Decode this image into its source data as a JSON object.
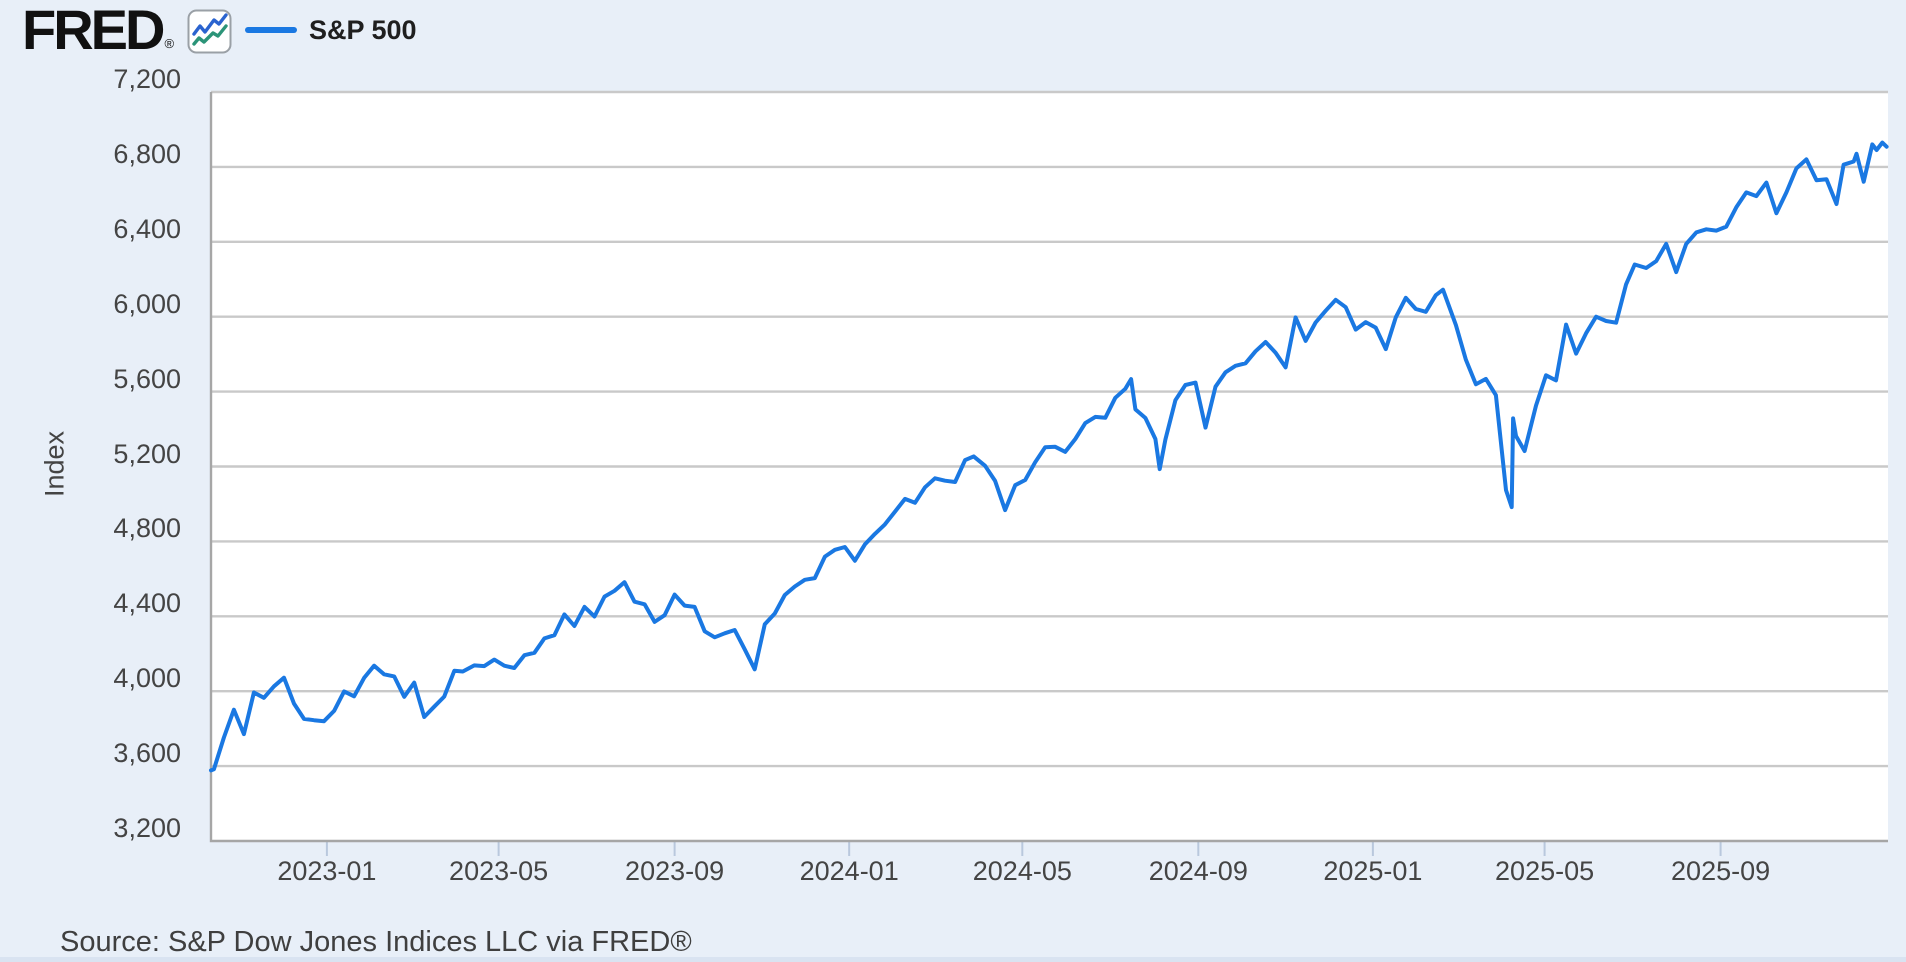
{
  "header": {
    "logo_text": "FRED",
    "logo_registered": "®",
    "legend_label": "S&P 500"
  },
  "footer": {
    "source": "Source: S&P Dow Jones Indices LLC via FRED®"
  },
  "colors": {
    "series_line": "#1a78e2",
    "background": "#e8eff8",
    "plot_background": "#ffffff",
    "gridline": "#c9c9c9",
    "axis_border": "#a6a6a6",
    "tick_mark": "#b9c8dd",
    "label_text": "#444444",
    "icon_blue": "#2a63cf",
    "icon_teal": "#2b9478"
  },
  "chart_data": {
    "type": "line",
    "title": "",
    "xlabel": "",
    "ylabel": "Index",
    "series_name": "S&P 500",
    "legend_position": "top-left",
    "grid": true,
    "ylim": [
      3200,
      7200
    ],
    "y_ticks": [
      3200,
      3600,
      4000,
      4400,
      4800,
      5200,
      5600,
      6000,
      6400,
      6800,
      7200
    ],
    "y_tick_labels": [
      "3,200",
      "3,600",
      "4,000",
      "4,400",
      "4,800",
      "5,200",
      "5,600",
      "6,000",
      "6,400",
      "6,800",
      "7,200"
    ],
    "xlim": [
      "2022-10-12",
      "2025-12-27"
    ],
    "x_ticks": [
      {
        "date": "2023-01-01",
        "label": "2023-01"
      },
      {
        "date": "2023-05-01",
        "label": "2023-05"
      },
      {
        "date": "2023-09-01",
        "label": "2023-09"
      },
      {
        "date": "2024-01-01",
        "label": "2024-01"
      },
      {
        "date": "2024-05-01",
        "label": "2024-05"
      },
      {
        "date": "2024-09-01",
        "label": "2024-09"
      },
      {
        "date": "2025-01-01",
        "label": "2025-01"
      },
      {
        "date": "2025-05-01",
        "label": "2025-05"
      },
      {
        "date": "2025-09-01",
        "label": "2025-09"
      }
    ],
    "points": [
      [
        "2022-10-12",
        3577
      ],
      [
        "2022-10-14",
        3583
      ],
      [
        "2022-10-21",
        3753
      ],
      [
        "2022-10-28",
        3901
      ],
      [
        "2022-11-04",
        3771
      ],
      [
        "2022-11-11",
        3993
      ],
      [
        "2022-11-18",
        3965
      ],
      [
        "2022-11-25",
        4026
      ],
      [
        "2022-12-02",
        4072
      ],
      [
        "2022-12-09",
        3934
      ],
      [
        "2022-12-16",
        3852
      ],
      [
        "2022-12-23",
        3845
      ],
      [
        "2022-12-30",
        3840
      ],
      [
        "2023-01-06",
        3895
      ],
      [
        "2023-01-13",
        3999
      ],
      [
        "2023-01-20",
        3973
      ],
      [
        "2023-01-27",
        4071
      ],
      [
        "2023-02-03",
        4136
      ],
      [
        "2023-02-10",
        4090
      ],
      [
        "2023-02-17",
        4079
      ],
      [
        "2023-02-24",
        3970
      ],
      [
        "2023-03-03",
        4046
      ],
      [
        "2023-03-10",
        3862
      ],
      [
        "2023-03-17",
        3917
      ],
      [
        "2023-03-24",
        3971
      ],
      [
        "2023-03-31",
        4109
      ],
      [
        "2023-04-06",
        4105
      ],
      [
        "2023-04-14",
        4138
      ],
      [
        "2023-04-21",
        4134
      ],
      [
        "2023-04-28",
        4169
      ],
      [
        "2023-05-05",
        4136
      ],
      [
        "2023-05-12",
        4124
      ],
      [
        "2023-05-19",
        4192
      ],
      [
        "2023-05-26",
        4205
      ],
      [
        "2023-06-02",
        4282
      ],
      [
        "2023-06-09",
        4299
      ],
      [
        "2023-06-16",
        4410
      ],
      [
        "2023-06-23",
        4348
      ],
      [
        "2023-06-30",
        4450
      ],
      [
        "2023-07-07",
        4399
      ],
      [
        "2023-07-14",
        4505
      ],
      [
        "2023-07-21",
        4536
      ],
      [
        "2023-07-28",
        4582
      ],
      [
        "2023-08-04",
        4478
      ],
      [
        "2023-08-11",
        4464
      ],
      [
        "2023-08-18",
        4370
      ],
      [
        "2023-08-25",
        4406
      ],
      [
        "2023-09-01",
        4516
      ],
      [
        "2023-09-08",
        4457
      ],
      [
        "2023-09-15",
        4450
      ],
      [
        "2023-09-22",
        4320
      ],
      [
        "2023-09-29",
        4288
      ],
      [
        "2023-10-06",
        4309
      ],
      [
        "2023-10-13",
        4327
      ],
      [
        "2023-10-20",
        4224
      ],
      [
        "2023-10-27",
        4117
      ],
      [
        "2023-11-03",
        4358
      ],
      [
        "2023-11-10",
        4415
      ],
      [
        "2023-11-17",
        4514
      ],
      [
        "2023-11-24",
        4559
      ],
      [
        "2023-12-01",
        4595
      ],
      [
        "2023-12-08",
        4604
      ],
      [
        "2023-12-15",
        4719
      ],
      [
        "2023-12-22",
        4755
      ],
      [
        "2023-12-29",
        4770
      ],
      [
        "2024-01-05",
        4697
      ],
      [
        "2024-01-12",
        4784
      ],
      [
        "2024-01-19",
        4840
      ],
      [
        "2024-01-26",
        4891
      ],
      [
        "2024-02-02",
        4959
      ],
      [
        "2024-02-09",
        5027
      ],
      [
        "2024-02-16",
        5006
      ],
      [
        "2024-02-23",
        5089
      ],
      [
        "2024-03-01",
        5137
      ],
      [
        "2024-03-08",
        5124
      ],
      [
        "2024-03-15",
        5117
      ],
      [
        "2024-03-22",
        5234
      ],
      [
        "2024-03-28",
        5254
      ],
      [
        "2024-04-05",
        5204
      ],
      [
        "2024-04-12",
        5123
      ],
      [
        "2024-04-19",
        4967
      ],
      [
        "2024-04-26",
        5100
      ],
      [
        "2024-05-03",
        5128
      ],
      [
        "2024-05-10",
        5223
      ],
      [
        "2024-05-17",
        5303
      ],
      [
        "2024-05-24",
        5305
      ],
      [
        "2024-05-31",
        5278
      ],
      [
        "2024-06-07",
        5347
      ],
      [
        "2024-06-14",
        5432
      ],
      [
        "2024-06-21",
        5465
      ],
      [
        "2024-06-28",
        5460
      ],
      [
        "2024-07-05",
        5567
      ],
      [
        "2024-07-12",
        5615
      ],
      [
        "2024-07-16",
        5667
      ],
      [
        "2024-07-19",
        5505
      ],
      [
        "2024-07-26",
        5459
      ],
      [
        "2024-08-02",
        5347
      ],
      [
        "2024-08-05",
        5186
      ],
      [
        "2024-08-09",
        5344
      ],
      [
        "2024-08-16",
        5554
      ],
      [
        "2024-08-23",
        5635
      ],
      [
        "2024-08-30",
        5648
      ],
      [
        "2024-09-06",
        5408
      ],
      [
        "2024-09-13",
        5626
      ],
      [
        "2024-09-20",
        5703
      ],
      [
        "2024-09-27",
        5738
      ],
      [
        "2024-10-04",
        5751
      ],
      [
        "2024-10-11",
        5815
      ],
      [
        "2024-10-18",
        5865
      ],
      [
        "2024-10-25",
        5808
      ],
      [
        "2024-11-01",
        5729
      ],
      [
        "2024-11-08",
        5996
      ],
      [
        "2024-11-15",
        5871
      ],
      [
        "2024-11-22",
        5969
      ],
      [
        "2024-11-29",
        6032
      ],
      [
        "2024-12-06",
        6090
      ],
      [
        "2024-12-13",
        6051
      ],
      [
        "2024-12-20",
        5931
      ],
      [
        "2024-12-27",
        5971
      ],
      [
        "2025-01-03",
        5942
      ],
      [
        "2025-01-10",
        5827
      ],
      [
        "2025-01-17",
        5997
      ],
      [
        "2025-01-24",
        6101
      ],
      [
        "2025-01-31",
        6041
      ],
      [
        "2025-02-07",
        6026
      ],
      [
        "2025-02-14",
        6115
      ],
      [
        "2025-02-19",
        6144
      ],
      [
        "2025-02-28",
        5955
      ],
      [
        "2025-03-07",
        5770
      ],
      [
        "2025-03-14",
        5639
      ],
      [
        "2025-03-21",
        5668
      ],
      [
        "2025-03-28",
        5581
      ],
      [
        "2025-04-04",
        5074
      ],
      [
        "2025-04-08",
        4983
      ],
      [
        "2025-04-09",
        5457
      ],
      [
        "2025-04-11",
        5363
      ],
      [
        "2025-04-17",
        5283
      ],
      [
        "2025-04-25",
        5525
      ],
      [
        "2025-05-02",
        5687
      ],
      [
        "2025-05-09",
        5660
      ],
      [
        "2025-05-16",
        5958
      ],
      [
        "2025-05-23",
        5803
      ],
      [
        "2025-05-30",
        5912
      ],
      [
        "2025-06-06",
        6000
      ],
      [
        "2025-06-13",
        5977
      ],
      [
        "2025-06-20",
        5968
      ],
      [
        "2025-06-27",
        6173
      ],
      [
        "2025-07-03",
        6279
      ],
      [
        "2025-07-11",
        6260
      ],
      [
        "2025-07-18",
        6297
      ],
      [
        "2025-07-25",
        6389
      ],
      [
        "2025-08-01",
        6238
      ],
      [
        "2025-08-08",
        6389
      ],
      [
        "2025-08-15",
        6450
      ],
      [
        "2025-08-22",
        6467
      ],
      [
        "2025-08-29",
        6460
      ],
      [
        "2025-09-05",
        6481
      ],
      [
        "2025-09-12",
        6584
      ],
      [
        "2025-09-19",
        6664
      ],
      [
        "2025-09-26",
        6644
      ],
      [
        "2025-10-03",
        6716
      ],
      [
        "2025-10-10",
        6553
      ],
      [
        "2025-10-17",
        6664
      ],
      [
        "2025-10-24",
        6792
      ],
      [
        "2025-10-31",
        6840
      ],
      [
        "2025-11-07",
        6729
      ],
      [
        "2025-11-14",
        6734
      ],
      [
        "2025-11-21",
        6602
      ],
      [
        "2025-11-26",
        6812
      ],
      [
        "2025-12-03",
        6829
      ],
      [
        "2025-12-05",
        6870
      ],
      [
        "2025-12-10",
        6721
      ],
      [
        "2025-12-16",
        6920
      ],
      [
        "2025-12-19",
        6890
      ],
      [
        "2025-12-23",
        6930
      ],
      [
        "2025-12-26",
        6908
      ]
    ]
  }
}
